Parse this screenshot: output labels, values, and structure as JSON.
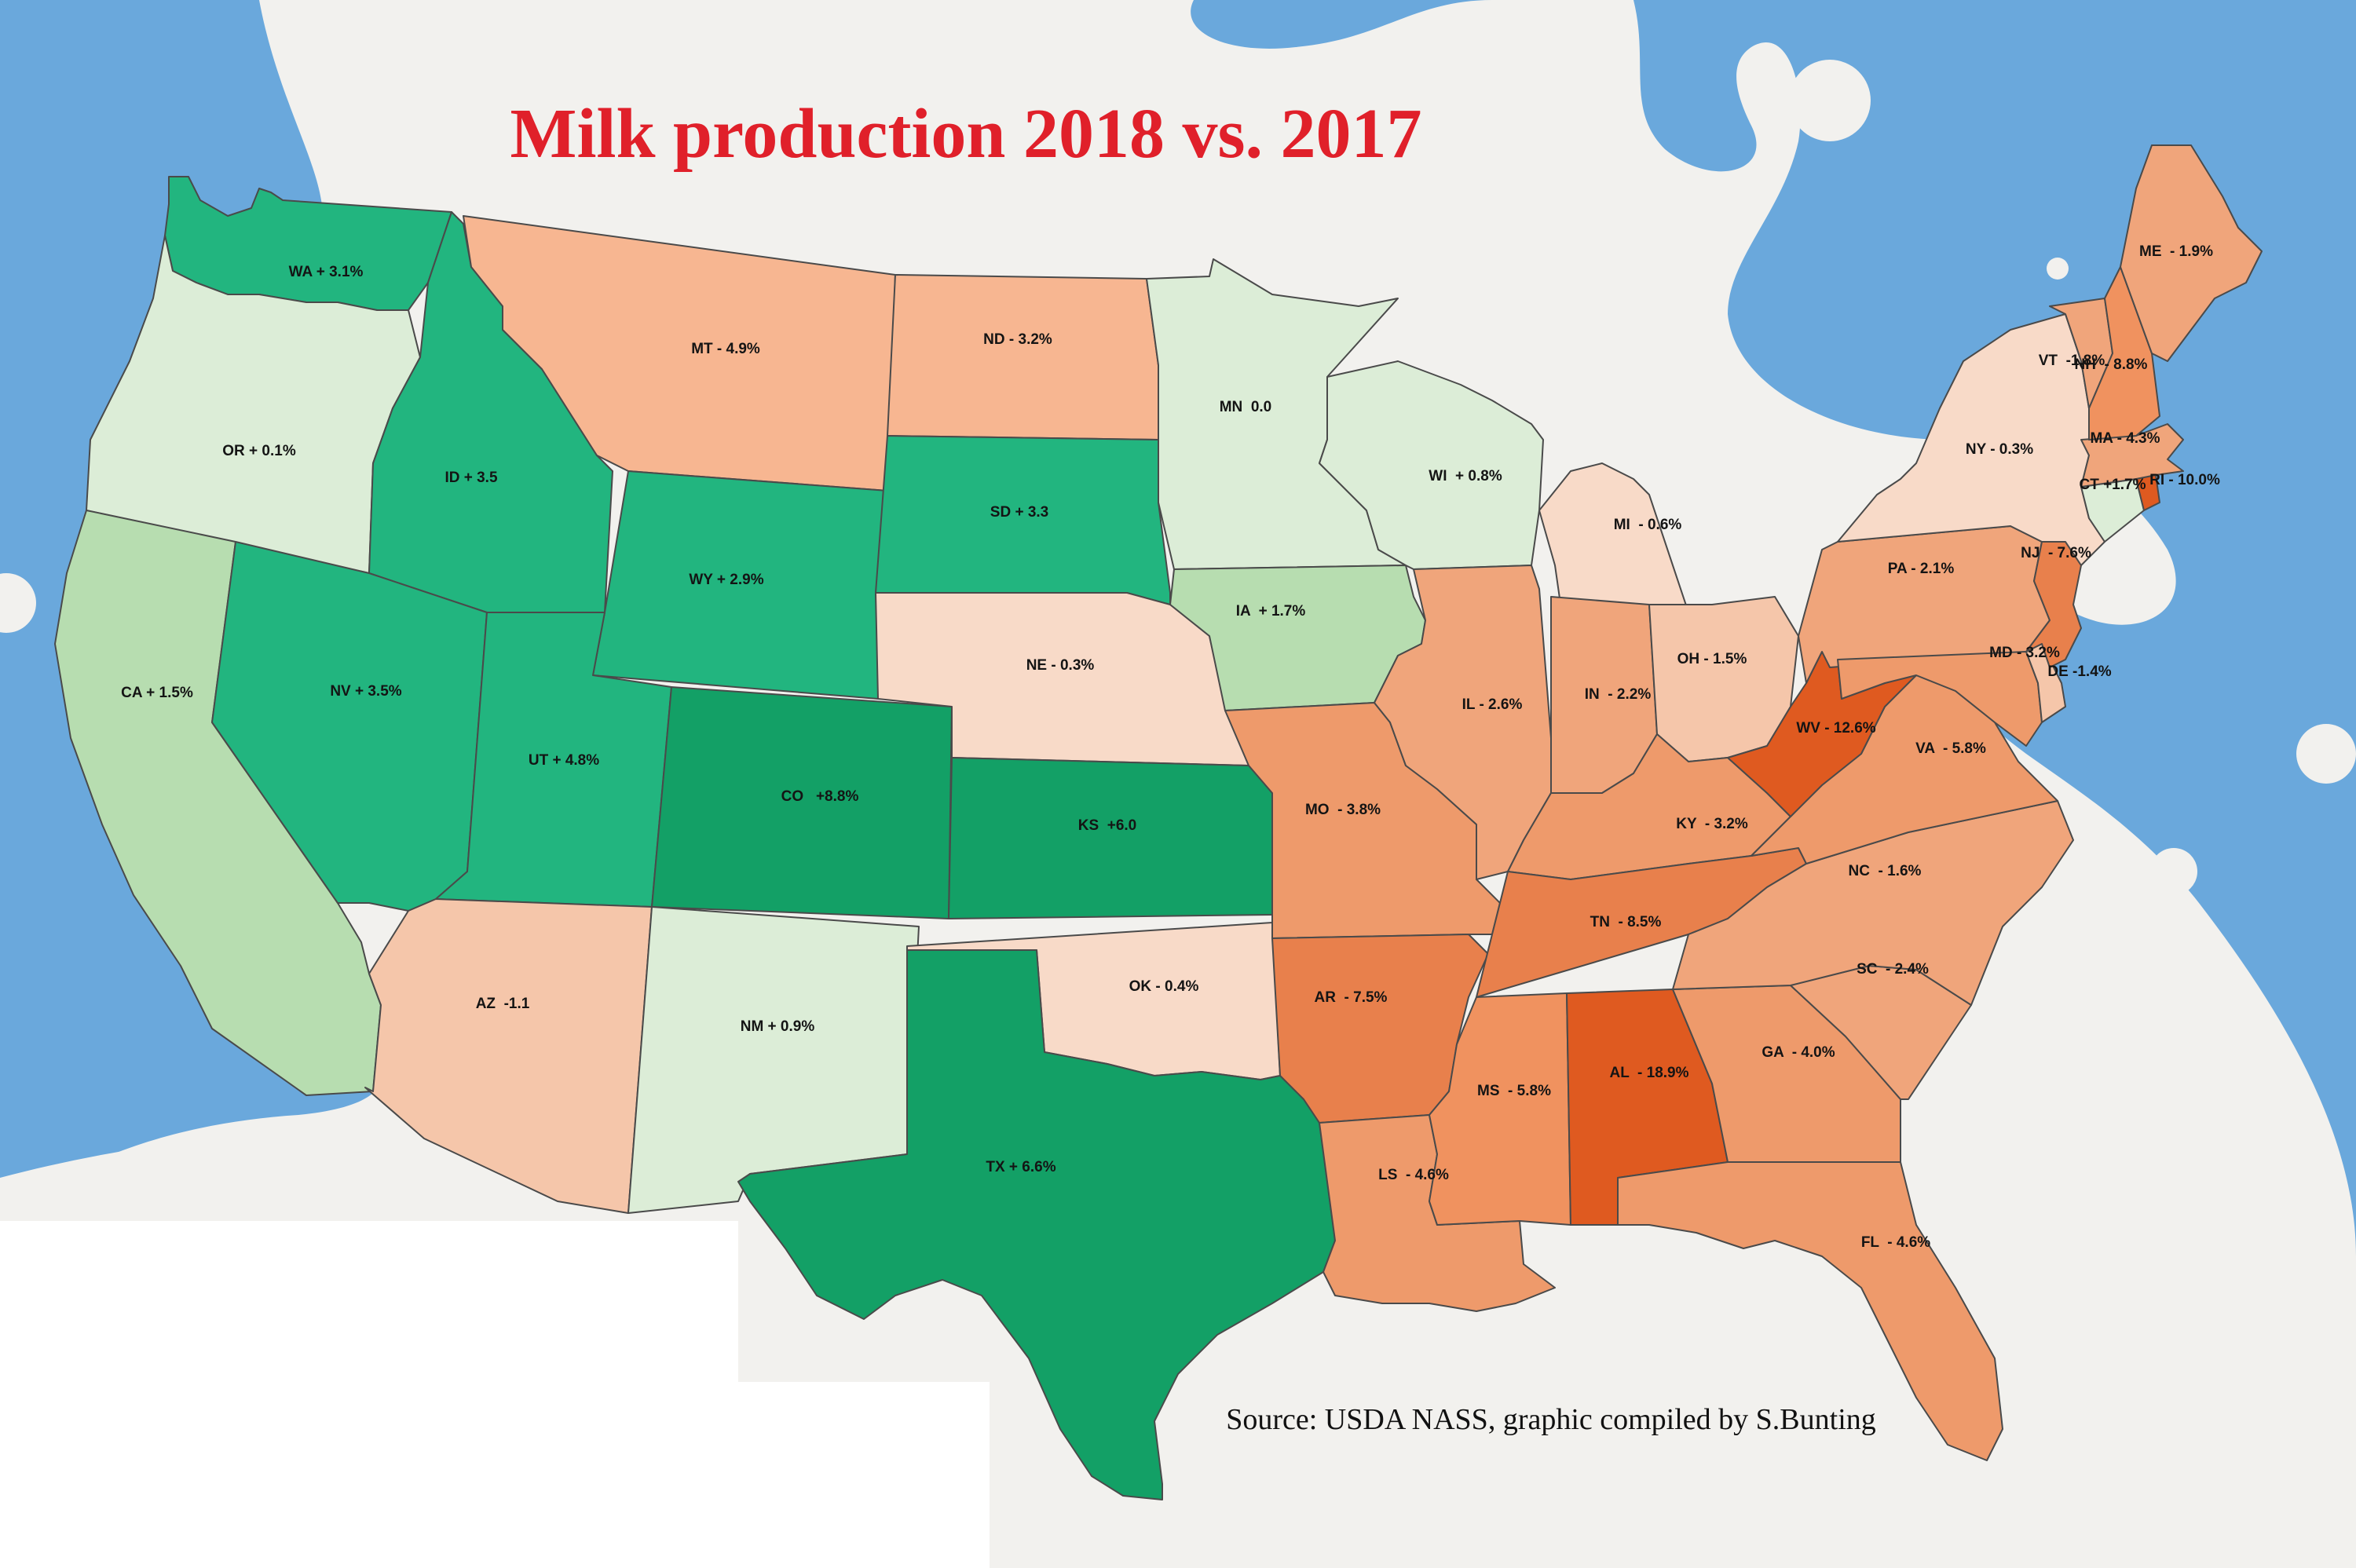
{
  "title": "Milk production 2018 vs. 2017",
  "source": "Source: USDA NASS, graphic compiled by S.Bunting",
  "colors": {
    "sea": "#6aa8dc",
    "milk": "#f2f1ee",
    "strong_green": "#13a066",
    "green": "#22b57f",
    "light_green": "#b7ddb0",
    "pale_green": "#dcedd7",
    "pale_orange": "#f5c6aa",
    "light_orange": "#f7b691",
    "orange": "#ee9a6b",
    "deep_orange": "#e56f38",
    "red_orange": "#df5a20",
    "title": "#e0202a"
  },
  "states": [
    {
      "id": "WA",
      "label": "WA + 3.1%",
      "change": 3.1,
      "color": "#22b57f"
    },
    {
      "id": "OR",
      "label": "OR + 0.1%",
      "change": 0.1,
      "color": "#dcedd7"
    },
    {
      "id": "CA",
      "label": "CA + 1.5%",
      "change": 1.5,
      "color": "#b7ddb0"
    },
    {
      "id": "ID",
      "label": "ID + 3.5",
      "change": 3.5,
      "color": "#22b57f"
    },
    {
      "id": "NV",
      "label": "NV + 3.5%",
      "change": 3.5,
      "color": "#22b57f"
    },
    {
      "id": "MT",
      "label": "MT - 4.9%",
      "change": -4.9,
      "color": "#f7b691"
    },
    {
      "id": "WY",
      "label": "WY + 2.9%",
      "change": 2.9,
      "color": "#22b57f"
    },
    {
      "id": "UT",
      "label": "UT + 4.8%",
      "change": 4.8,
      "color": "#22b57f"
    },
    {
      "id": "AZ",
      "label": "AZ  -1.1",
      "change": -1.1,
      "color": "#f5c6aa"
    },
    {
      "id": "CO",
      "label": "CO   +8.8%",
      "change": 8.8,
      "color": "#13a066"
    },
    {
      "id": "NM",
      "label": "NM + 0.9%",
      "change": 0.9,
      "color": "#dcedd7"
    },
    {
      "id": "ND",
      "label": "ND - 3.2%",
      "change": -3.2,
      "color": "#f7b691"
    },
    {
      "id": "SD",
      "label": "SD + 3.3",
      "change": 3.3,
      "color": "#22b57f"
    },
    {
      "id": "NE",
      "label": "NE - 0.3%",
      "change": -0.3,
      "color": "#f8dac8"
    },
    {
      "id": "KS",
      "label": "KS  +6.0",
      "change": 6.0,
      "color": "#13a066"
    },
    {
      "id": "OK",
      "label": "OK - 0.4%",
      "change": -0.4,
      "color": "#f8dac8"
    },
    {
      "id": "TX",
      "label": "TX + 6.6%",
      "change": 6.6,
      "color": "#13a066"
    },
    {
      "id": "MN",
      "label": "MN  0.0",
      "change": 0.0,
      "color": "#dcedd7"
    },
    {
      "id": "IA",
      "label": "IA  + 1.7%",
      "change": 1.7,
      "color": "#b7ddb0"
    },
    {
      "id": "MO",
      "label": "MO  - 3.8%",
      "change": -3.8,
      "color": "#ee9a6b"
    },
    {
      "id": "AR",
      "label": "AR  - 7.5%",
      "change": -7.5,
      "color": "#e8804c"
    },
    {
      "id": "LS",
      "label": "LS  - 4.6%",
      "change": -4.6,
      "color": "#ee9a6b"
    },
    {
      "id": "WI",
      "label": "WI  + 0.8%",
      "change": 0.8,
      "color": "#dcedd7"
    },
    {
      "id": "IL",
      "label": "IL - 2.6%",
      "change": -2.6,
      "color": "#f0a57b"
    },
    {
      "id": "MI",
      "label": "MI  - 0.6%",
      "change": -0.6,
      "color": "#f8dac8"
    },
    {
      "id": "IN",
      "label": "IN  - 2.2%",
      "change": -2.2,
      "color": "#f0a57b"
    },
    {
      "id": "OH",
      "label": "OH - 1.5%",
      "change": -1.5,
      "color": "#f5c6aa"
    },
    {
      "id": "KY",
      "label": "KY  - 3.2%",
      "change": -3.2,
      "color": "#ee9a6b"
    },
    {
      "id": "TN",
      "label": "TN  - 8.5%",
      "change": -8.5,
      "color": "#e8804c"
    },
    {
      "id": "MS",
      "label": "MS  - 5.8%",
      "change": -5.8,
      "color": "#f0925f"
    },
    {
      "id": "AL",
      "label": "AL  - 18.9%",
      "change": -18.9,
      "color": "#df5a20"
    },
    {
      "id": "GA",
      "label": "GA  - 4.0%",
      "change": -4.0,
      "color": "#ee9a6b"
    },
    {
      "id": "FL",
      "label": "FL  - 4.6%",
      "change": -4.6,
      "color": "#ee9a6b"
    },
    {
      "id": "SC",
      "label": "SC  - 2.4%",
      "change": -2.4,
      "color": "#f0a57b"
    },
    {
      "id": "NC",
      "label": "NC  - 1.6%",
      "change": -1.6,
      "color": "#f0a57b"
    },
    {
      "id": "VA",
      "label": "VA  - 5.8%",
      "change": -5.8,
      "color": "#ee9a6b"
    },
    {
      "id": "WV",
      "label": "WV - 12.6%",
      "change": -12.6,
      "color": "#df5a20"
    },
    {
      "id": "PA",
      "label": "PA - 2.1%",
      "change": -2.1,
      "color": "#f0a57b"
    },
    {
      "id": "MD",
      "label": "MD - 3.2%",
      "change": -3.2,
      "color": "#ee9a6b"
    },
    {
      "id": "DE",
      "label": "DE -1.4%",
      "change": -1.4,
      "color": "#f5c6aa"
    },
    {
      "id": "NJ",
      "label": "NJ  - 7.6%",
      "change": -7.6,
      "color": "#e8804c"
    },
    {
      "id": "NY",
      "label": "NY - 0.3%",
      "change": -0.3,
      "color": "#f8dac8"
    },
    {
      "id": "CT",
      "label": "CT +1.7%",
      "change": 1.7,
      "color": "#dcedd7"
    },
    {
      "id": "RI",
      "label": "RI - 10.0%",
      "change": -10.0,
      "color": "#df5a20"
    },
    {
      "id": "MA",
      "label": "MA - 4.3%",
      "change": -4.3,
      "color": "#f0a57b"
    },
    {
      "id": "VT",
      "label": "VT  -1.8%",
      "change": -1.8,
      "color": "#f0a57b"
    },
    {
      "id": "NH",
      "label": "NH  - 8.8%",
      "change": -8.8,
      "color": "#f0925f"
    },
    {
      "id": "ME",
      "label": "ME  - 1.9%",
      "change": -1.9,
      "color": "#f0a57b"
    }
  ]
}
